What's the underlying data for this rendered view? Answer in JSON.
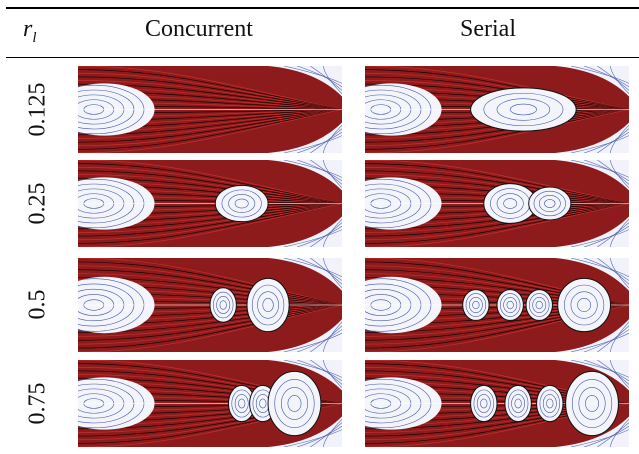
{
  "table": {
    "header": {
      "symbol": {
        "base": "r",
        "sub": "l"
      },
      "columns": [
        "Concurrent",
        "Serial"
      ]
    },
    "rows": [
      "0.125",
      "0.25",
      "0.5",
      "0.75"
    ]
  }
}
